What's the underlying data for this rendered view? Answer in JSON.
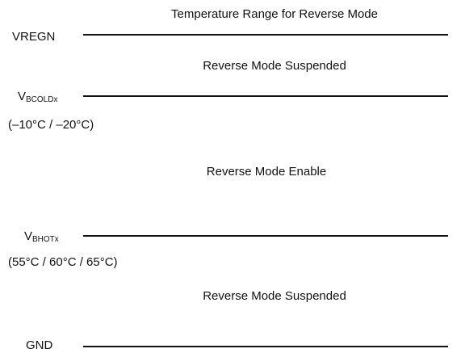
{
  "title": "Temperature Range for Reverse Mode",
  "levels": [
    {
      "label": "VREGN"
    },
    {
      "label": "V",
      "subscript": "BCOLDx",
      "note": "(–10°C / –20°C)"
    },
    {
      "label": "V",
      "subscript": "BHOTx",
      "note": "(55°C / 60°C / 65°C)"
    },
    {
      "label": "GND"
    }
  ],
  "regions": [
    "Reverse Mode Suspended",
    "Reverse Mode Enable",
    "Reverse Mode Suspended"
  ]
}
